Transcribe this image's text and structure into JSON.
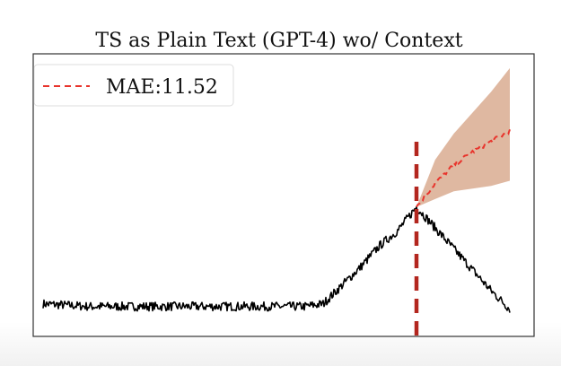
{
  "chart_data": {
    "type": "line",
    "title": "TS as Plain Text (GPT-4) wo/ Context",
    "xlabel": "",
    "ylabel": "",
    "xlim": [
      0,
      1000
    ],
    "ylim": [
      0,
      100
    ],
    "grid": false,
    "legend": {
      "placement": "top-left",
      "entries": [
        "MAE:11.52"
      ]
    },
    "colors": {
      "history": "#000000",
      "forecast": "#e8342c",
      "band": "#d9ab91",
      "cutoff": "#b3261e"
    },
    "cutoff_x": 800,
    "series": [
      {
        "role": "observed",
        "style": "solid",
        "x": [
          0,
          100,
          200,
          300,
          400,
          500,
          560,
          600,
          640,
          680,
          720,
          760,
          800,
          840,
          880,
          920,
          960,
          1000
        ],
        "y": [
          9,
          8,
          8,
          8,
          8,
          8,
          8,
          9,
          16,
          23,
          31,
          37,
          46,
          38,
          30,
          22,
          14,
          7
        ]
      },
      {
        "name": "MAE:11.52",
        "role": "forecast",
        "style": "dashed",
        "x": [
          800,
          840,
          880,
          920,
          960,
          1000
        ],
        "y": [
          46,
          55,
          62,
          67,
          71,
          75
        ],
        "lower": [
          46,
          49,
          52,
          53,
          54,
          56
        ],
        "upper": [
          46,
          64,
          74,
          82,
          90,
          99
        ]
      }
    ]
  }
}
